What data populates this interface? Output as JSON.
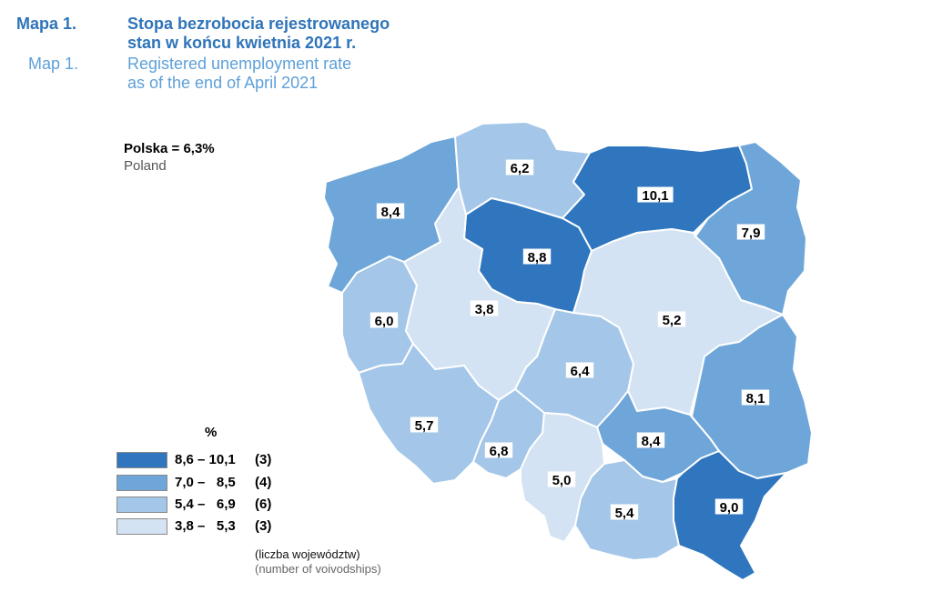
{
  "header": {
    "label_pl": "Mapa 1.",
    "title_pl_line1": "Stopa bezrobocia rejestrowanego",
    "title_pl_line2": "stan w końcu kwietnia 2021 r.",
    "label_en": "Map 1.",
    "title_en_line1": "Registered unemployment rate",
    "title_en_line2": "as of the end of April 2021"
  },
  "national": {
    "label_pl": "Polska = 6,3%",
    "label_en": "Poland"
  },
  "colors": {
    "class1": "#2f76be",
    "class2": "#6fa6d9",
    "class3": "#a4c6e8",
    "class4": "#d4e3f3",
    "legend_border": "#8a8a8a",
    "title_pl": "#2f74b9",
    "title_en": "#5ea0d8"
  },
  "regions": [
    {
      "id": "zachodniopomorskie",
      "value": "8,4",
      "class": 2
    },
    {
      "id": "pomorskie",
      "value": "6,2",
      "class": 3
    },
    {
      "id": "warminsko-mazurskie",
      "value": "10,1",
      "class": 1
    },
    {
      "id": "podlaskie",
      "value": "7,9",
      "class": 2
    },
    {
      "id": "kujawsko-pomorskie",
      "value": "8,8",
      "class": 1
    },
    {
      "id": "lubuskie",
      "value": "6,0",
      "class": 3
    },
    {
      "id": "wielkopolskie",
      "value": "3,8",
      "class": 4
    },
    {
      "id": "mazowieckie",
      "value": "5,2",
      "class": 4
    },
    {
      "id": "lodzkie",
      "value": "6,4",
      "class": 3
    },
    {
      "id": "lubelskie",
      "value": "8,1",
      "class": 2
    },
    {
      "id": "dolnoslaskie",
      "value": "5,7",
      "class": 3
    },
    {
      "id": "opolskie",
      "value": "6,8",
      "class": 3
    },
    {
      "id": "swietokrzyskie",
      "value": "8,4",
      "class": 2
    },
    {
      "id": "slaskie",
      "value": "5,0",
      "class": 4
    },
    {
      "id": "malopolskie",
      "value": "5,4",
      "class": 3
    },
    {
      "id": "podkarpackie",
      "value": "9,0",
      "class": 1
    }
  ],
  "legend": {
    "unit": "%",
    "items": [
      {
        "range": "8,6 – 10,1",
        "count": "(3)"
      },
      {
        "range": "7,0 –   8,5",
        "count": "(4)"
      },
      {
        "range": "5,4 –   6,9",
        "count": "(6)"
      },
      {
        "range": "3,8 –   5,3",
        "count": "(3)"
      }
    ],
    "note_pl": "(liczba województw)",
    "note_en": "(number of voivodships)"
  }
}
